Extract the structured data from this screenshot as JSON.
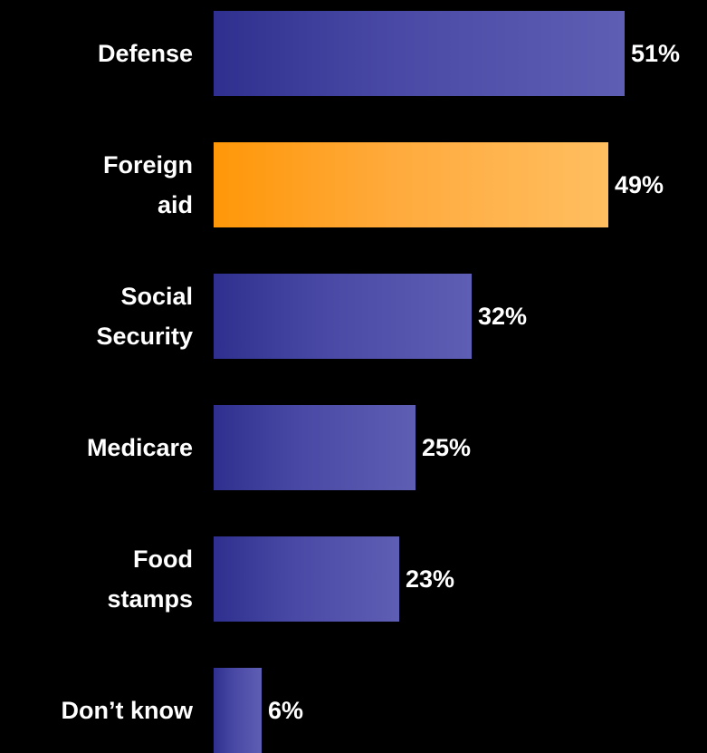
{
  "chart_data": {
    "type": "bar",
    "orientation": "horizontal",
    "categories": [
      [
        "Defense"
      ],
      [
        "Foreign",
        "aid"
      ],
      [
        "Social",
        "Security"
      ],
      [
        "Medicare"
      ],
      [
        "Food",
        "stamps"
      ],
      [
        "Don’t know"
      ]
    ],
    "values": [
      51,
      49,
      32,
      25,
      23,
      6
    ],
    "value_labels": [
      "51%",
      "49%",
      "32%",
      "25%",
      "23%",
      "6%"
    ],
    "highlight_index": 1,
    "colors": {
      "bar": "#4a4aa6",
      "highlight": "#ffaa3c",
      "background": "#000000",
      "text": "#ffffff"
    },
    "xlim": [
      0,
      51
    ],
    "grid": false,
    "legend": "none"
  }
}
